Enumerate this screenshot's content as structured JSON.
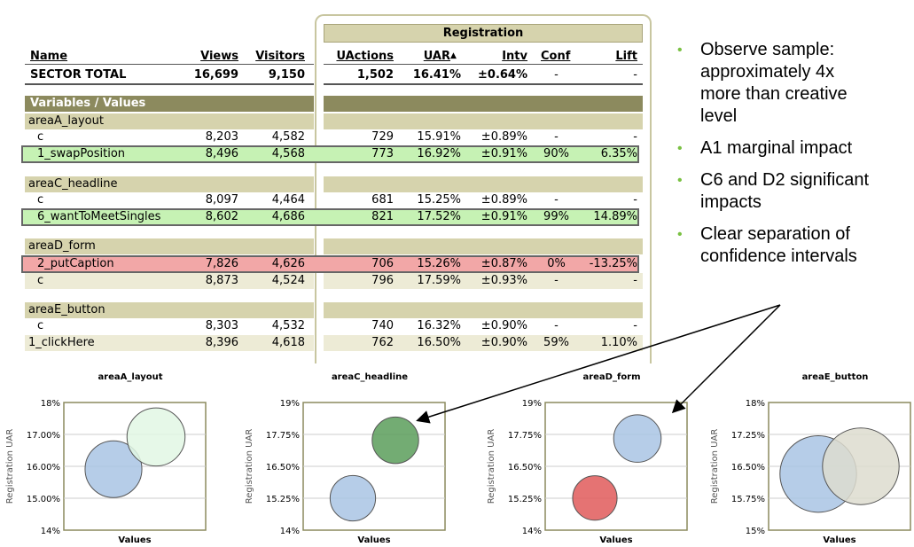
{
  "registration_label": "Registration",
  "headers": {
    "name": "Name",
    "views": "Views",
    "visitors": "Visitors",
    "uactions": "UActions",
    "uar": "UAR",
    "sort_arrow": "▲",
    "intv": "Intv",
    "conf": "Conf",
    "lift": "Lift"
  },
  "sector_total": {
    "name": "SECTOR TOTAL",
    "views": "16,699",
    "visitors": "9,150",
    "uactions": "1,502",
    "uar": "16.41%",
    "intv": "±0.64%",
    "conf": "-",
    "lift": "-"
  },
  "variables_label": "Variables / Values",
  "groups": [
    {
      "name": "areaA_layout",
      "rows": [
        {
          "name": "c",
          "views": "8,203",
          "visitors": "4,582",
          "uactions": "729",
          "uar": "15.91%",
          "intv": "±0.89%",
          "conf": "-",
          "lift": "-"
        },
        {
          "name": "1_swapPosition",
          "views": "8,496",
          "visitors": "4,568",
          "uactions": "773",
          "uar": "16.92%",
          "intv": "±0.91%",
          "conf": "90%",
          "lift": "6.35%"
        }
      ]
    },
    {
      "name": "areaC_headline",
      "rows": [
        {
          "name": "c",
          "views": "8,097",
          "visitors": "4,464",
          "uactions": "681",
          "uar": "15.25%",
          "intv": "±0.89%",
          "conf": "-",
          "lift": "-"
        },
        {
          "name": "6_wantToMeetSingles",
          "views": "8,602",
          "visitors": "4,686",
          "uactions": "821",
          "uar": "17.52%",
          "intv": "±0.91%",
          "conf": "99%",
          "lift": "14.89%"
        }
      ]
    },
    {
      "name": "areaD_form",
      "rows": [
        {
          "name": "2_putCaption",
          "views": "7,826",
          "visitors": "4,626",
          "uactions": "706",
          "uar": "15.26%",
          "intv": "±0.87%",
          "conf": "0%",
          "lift": "-13.25%"
        },
        {
          "name": "c",
          "views": "8,873",
          "visitors": "4,524",
          "uactions": "796",
          "uar": "17.59%",
          "intv": "±0.93%",
          "conf": "-",
          "lift": "-"
        }
      ]
    },
    {
      "name": "areaE_button",
      "rows": [
        {
          "name": "c",
          "views": "8,303",
          "visitors": "4,532",
          "uactions": "740",
          "uar": "16.32%",
          "intv": "±0.90%",
          "conf": "-",
          "lift": "-"
        },
        {
          "name": "1_clickHere",
          "views": "8,396",
          "visitors": "4,618",
          "uactions": "762",
          "uar": "16.50%",
          "intv": "±0.90%",
          "conf": "59%",
          "lift": "1.10%"
        }
      ]
    }
  ],
  "bullets": [
    {
      "lines": [
        "Observe sample:",
        "approximately 4x",
        "more than creative",
        "level"
      ]
    },
    {
      "lines": [
        "A1 marginal impact"
      ]
    },
    {
      "lines": [
        "C6 and D2 significant",
        "impacts"
      ]
    },
    {
      "lines": [
        "Clear separation of",
        "confidence intervals"
      ]
    }
  ],
  "bullet_symbol": "•",
  "colors": {
    "olive_dark": "#8c8a5e",
    "olive_light": "#d6d3ad",
    "green_row": "#c6f2b4",
    "red_row": "#f2a7a7",
    "bullet_green": "#7ac143",
    "bubble_blue": "#a9c4e4",
    "bubble_green_light": "#e2f7e4",
    "bubble_green_dark": "#5a9e5a",
    "bubble_red": "#e05a5a",
    "bubble_beige": "#dddccf"
  },
  "chart_data": [
    {
      "type": "scatter",
      "title": "areaA_layout",
      "xlabel": "Values",
      "ylabel": "Registration UAR",
      "ylim": [
        14,
        18
      ],
      "ytick_labels": [
        "18%",
        "17.00%",
        "16.00%",
        "15.00%",
        "14%"
      ],
      "series": [
        {
          "x": 1,
          "y": 15.91,
          "err": 0.89,
          "color": "#a9c4e4"
        },
        {
          "x": 2,
          "y": 16.92,
          "err": 0.91,
          "color": "#e2f7e4"
        }
      ]
    },
    {
      "type": "scatter",
      "title": "areaC_headline",
      "xlabel": "Values",
      "ylabel": "Registration UAR",
      "ylim": [
        14,
        19
      ],
      "ytick_labels": [
        "19%",
        "17.75%",
        "16.50%",
        "15.25%",
        "14%"
      ],
      "series": [
        {
          "x": 1,
          "y": 15.25,
          "err": 0.89,
          "color": "#a9c4e4"
        },
        {
          "x": 2,
          "y": 17.52,
          "err": 0.91,
          "color": "#5a9e5a"
        }
      ]
    },
    {
      "type": "scatter",
      "title": "areaD_form",
      "xlabel": "Values",
      "ylabel": "Registration UAR",
      "ylim": [
        14,
        19
      ],
      "ytick_labels": [
        "19%",
        "17.75%",
        "16.50%",
        "15.25%",
        "14%"
      ],
      "series": [
        {
          "x": 1,
          "y": 15.26,
          "err": 0.87,
          "color": "#e05a5a"
        },
        {
          "x": 2,
          "y": 17.59,
          "err": 0.93,
          "color": "#a9c4e4"
        }
      ]
    },
    {
      "type": "scatter",
      "title": "areaE_button",
      "xlabel": "Values",
      "ylabel": "Registration UAR",
      "ylim": [
        15,
        18
      ],
      "ytick_labels": [
        "18%",
        "17.25%",
        "16.50%",
        "15.75%",
        "15%"
      ],
      "series": [
        {
          "x": 1,
          "y": 16.32,
          "err": 0.9,
          "color": "#a9c4e4"
        },
        {
          "x": 2,
          "y": 16.5,
          "err": 0.9,
          "color": "#dddccf"
        }
      ]
    }
  ]
}
